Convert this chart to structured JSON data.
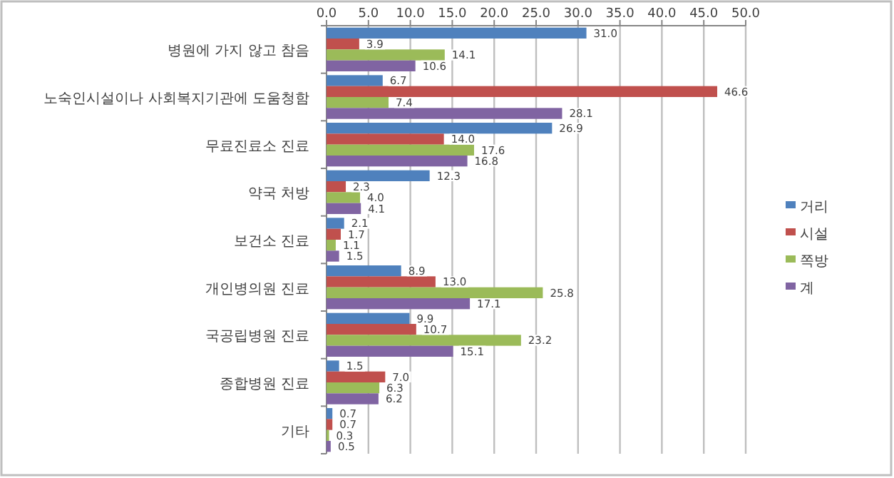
{
  "chart_data": {
    "type": "bar",
    "orientation": "horizontal",
    "categories": [
      "병원에 가지 않고 참음",
      "노숙인시설이나 사회복지기관에 도움청함",
      "무료진료소 진료",
      "약국 처방",
      "보건소 진료",
      "개인병의원 진료",
      "국공립병원 진료",
      "종합병원 진료",
      "기타"
    ],
    "series": [
      {
        "name": "거리",
        "color": "#4f81bd",
        "values": [
          31.0,
          6.7,
          26.9,
          12.3,
          2.1,
          8.9,
          9.9,
          1.5,
          0.7
        ],
        "value_labels": [
          "31.0",
          "6.7",
          "26.9",
          "12.3",
          "2.1",
          "8.9",
          "9.9",
          "1.5",
          "0.7"
        ]
      },
      {
        "name": "시설",
        "color": "#c0504d",
        "values": [
          3.9,
          46.6,
          14.0,
          2.3,
          1.7,
          13.0,
          10.7,
          7.0,
          0.7
        ],
        "value_labels": [
          "3.9",
          "46.6",
          "14.0",
          "2.3",
          "1.7",
          "13.0",
          "10.7",
          "7.0",
          "0.7"
        ]
      },
      {
        "name": "쪽방",
        "color": "#9bbb59",
        "values": [
          14.1,
          7.4,
          17.6,
          4.0,
          1.1,
          25.8,
          23.2,
          6.3,
          0.3
        ],
        "value_labels": [
          "14.1",
          "7.4",
          "17.6",
          "4.0",
          "1.1",
          "25.8",
          "23.2",
          "6.3",
          "0.3"
        ]
      },
      {
        "name": "계",
        "color": "#8064a2",
        "values": [
          10.6,
          28.1,
          16.8,
          4.1,
          1.5,
          17.1,
          15.1,
          6.2,
          0.5
        ],
        "value_labels": [
          "10.6",
          "28.1",
          "16.8",
          "4.1",
          "1.5",
          "17.1",
          "15.1",
          "6.2",
          "0.5"
        ]
      }
    ],
    "xlim": [
      0,
      50
    ],
    "xticks": [
      {
        "value": 0,
        "label": "0.0"
      },
      {
        "value": 5,
        "label": "5.0"
      },
      {
        "value": 10,
        "label": "10.0"
      },
      {
        "value": 15,
        "label": "15.0"
      },
      {
        "value": 20,
        "label": "20.0"
      },
      {
        "value": 25,
        "label": "25.0"
      },
      {
        "value": 30,
        "label": "30.0"
      },
      {
        "value": 35,
        "label": "35.0"
      },
      {
        "value": 40,
        "label": "40.0"
      },
      {
        "value": 45,
        "label": "45.0"
      },
      {
        "value": 50,
        "label": "50.0"
      }
    ],
    "grid": "x",
    "legend": "right"
  }
}
